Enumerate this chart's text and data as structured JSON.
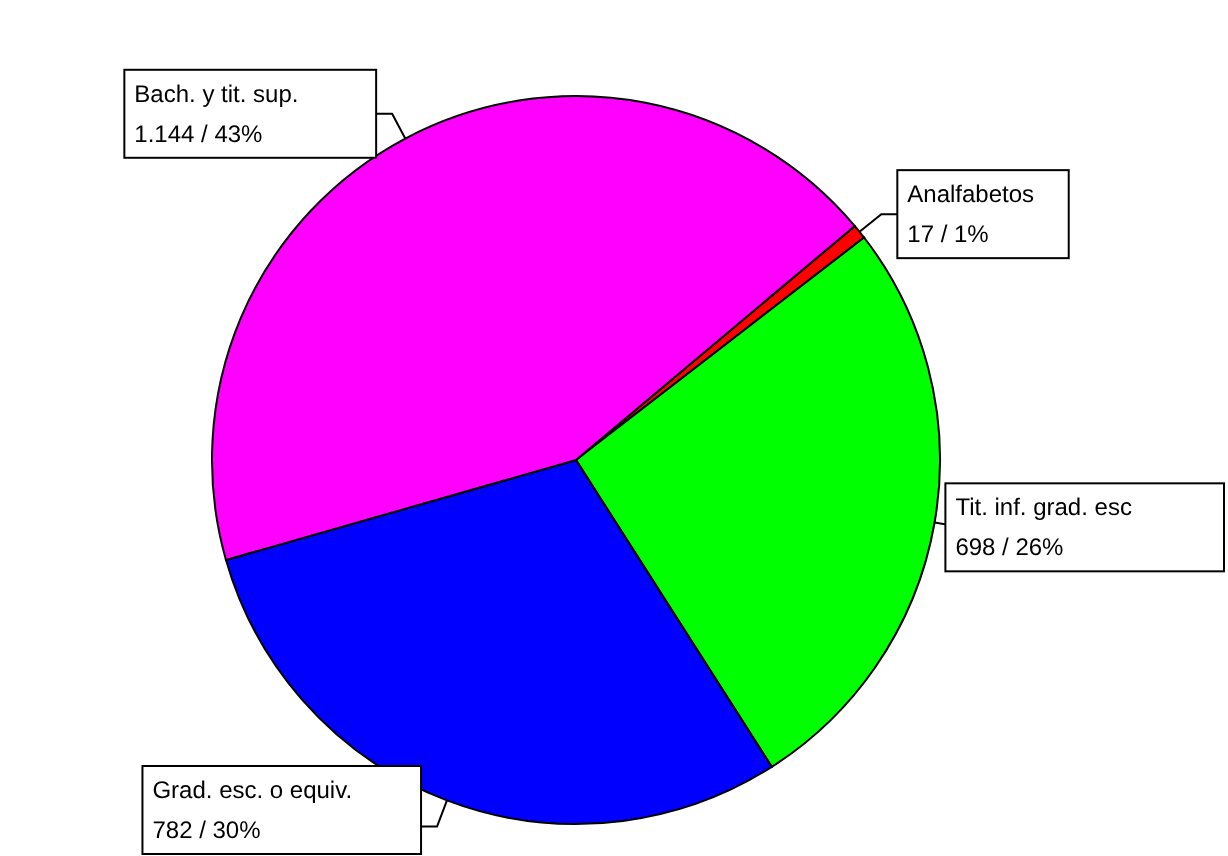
{
  "chart_data": {
    "type": "pie",
    "categories": [
      "Analfabetos",
      "Tit. inf. grad. esc",
      "Grad. esc. o equiv.",
      "Bach. y tit. sup."
    ],
    "values": [
      17,
      698,
      782,
      1144
    ],
    "value_labels": [
      "17 / 1%",
      "698 / 26%",
      "782 / 30%",
      "1.144 / 43%"
    ],
    "colors": [
      "#ff0000",
      "#00ff00",
      "#0000ff",
      "#ff00ff"
    ]
  }
}
